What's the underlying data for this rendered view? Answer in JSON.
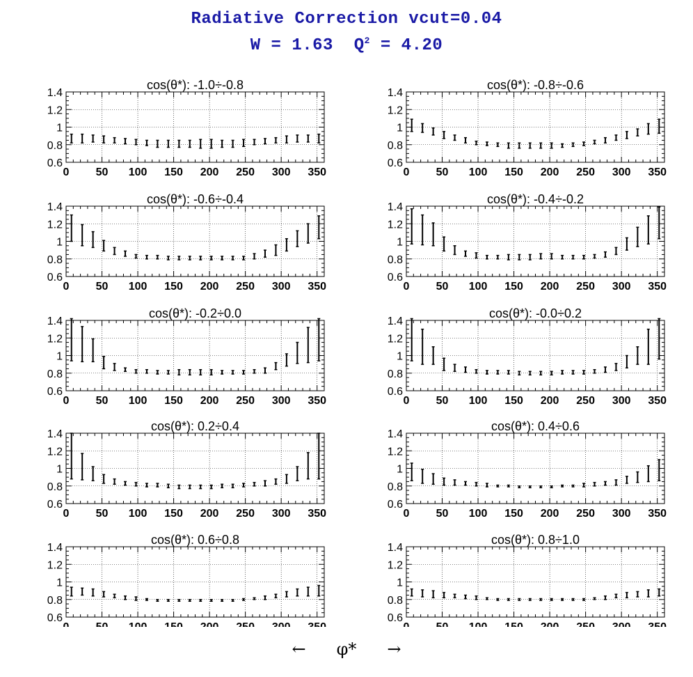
{
  "header": {
    "title_line1": "Radiative Correction  vcut=0.04",
    "w_label": "W = 1.63",
    "q_label": "Q",
    "q_exp": "2",
    "q_value": " = 4.20"
  },
  "footer": {
    "left_arrow": "←",
    "xlabel": "φ*",
    "right_arrow": "→"
  },
  "chart_data": {
    "type": "scatter",
    "xlim": [
      0,
      360
    ],
    "ylim": [
      0.6,
      1.4
    ],
    "xticks": [
      0,
      50,
      100,
      150,
      200,
      250,
      300,
      350
    ],
    "yticks": [
      0.6,
      0.8,
      1,
      1.2,
      1.4
    ],
    "grid": true,
    "x": [
      7.5,
      22.5,
      37.5,
      52.5,
      67.5,
      82.5,
      97.5,
      112.5,
      127.5,
      142.5,
      157.5,
      172.5,
      187.5,
      202.5,
      217.5,
      232.5,
      247.5,
      262.5,
      277.5,
      292.5,
      307.5,
      322.5,
      337.5,
      352.5
    ],
    "panels": [
      {
        "title": "cos(θ*): -1.0÷-0.8",
        "y": [
          0.87,
          0.87,
          0.87,
          0.86,
          0.85,
          0.84,
          0.83,
          0.82,
          0.81,
          0.81,
          0.81,
          0.81,
          0.81,
          0.81,
          0.81,
          0.81,
          0.82,
          0.83,
          0.84,
          0.85,
          0.86,
          0.87,
          0.87,
          0.87
        ],
        "err": [
          0.05,
          0.05,
          0.04,
          0.04,
          0.03,
          0.03,
          0.03,
          0.03,
          0.04,
          0.04,
          0.04,
          0.04,
          0.05,
          0.05,
          0.04,
          0.04,
          0.04,
          0.03,
          0.03,
          0.03,
          0.04,
          0.04,
          0.04,
          0.05
        ]
      },
      {
        "title": "cos(θ*): -0.8÷-0.6",
        "y": [
          1.02,
          0.99,
          0.95,
          0.91,
          0.88,
          0.85,
          0.82,
          0.81,
          0.8,
          0.79,
          0.79,
          0.79,
          0.79,
          0.79,
          0.79,
          0.8,
          0.81,
          0.83,
          0.85,
          0.88,
          0.91,
          0.94,
          0.98,
          1.01
        ],
        "err": [
          0.07,
          0.05,
          0.04,
          0.04,
          0.03,
          0.03,
          0.02,
          0.02,
          0.02,
          0.03,
          0.03,
          0.03,
          0.03,
          0.03,
          0.02,
          0.02,
          0.02,
          0.02,
          0.03,
          0.03,
          0.04,
          0.04,
          0.06,
          0.08
        ]
      },
      {
        "title": "cos(θ*): -0.6÷-0.4",
        "y": [
          1.15,
          1.07,
          1.02,
          0.95,
          0.89,
          0.86,
          0.83,
          0.82,
          0.82,
          0.81,
          0.81,
          0.81,
          0.81,
          0.81,
          0.81,
          0.81,
          0.81,
          0.83,
          0.86,
          0.9,
          0.96,
          1.03,
          1.09,
          1.16
        ],
        "err": [
          0.15,
          0.12,
          0.09,
          0.06,
          0.04,
          0.03,
          0.02,
          0.02,
          0.02,
          0.02,
          0.02,
          0.02,
          0.02,
          0.02,
          0.02,
          0.02,
          0.02,
          0.03,
          0.04,
          0.06,
          0.07,
          0.09,
          0.11,
          0.13
        ]
      },
      {
        "title": "cos(θ*): -0.4÷-0.2",
        "y": [
          1.17,
          1.13,
          1.08,
          0.97,
          0.9,
          0.86,
          0.84,
          0.82,
          0.82,
          0.82,
          0.82,
          0.82,
          0.83,
          0.83,
          0.82,
          0.82,
          0.82,
          0.83,
          0.85,
          0.89,
          0.97,
          1.05,
          1.13,
          1.21
        ],
        "err": [
          0.2,
          0.17,
          0.13,
          0.08,
          0.05,
          0.03,
          0.03,
          0.02,
          0.02,
          0.03,
          0.03,
          0.03,
          0.03,
          0.03,
          0.02,
          0.02,
          0.02,
          0.02,
          0.03,
          0.04,
          0.07,
          0.11,
          0.16,
          0.18
        ]
      },
      {
        "title": "cos(θ*): -0.2÷0.0",
        "y": [
          1.18,
          1.13,
          1.06,
          0.92,
          0.87,
          0.84,
          0.82,
          0.82,
          0.81,
          0.81,
          0.81,
          0.81,
          0.81,
          0.81,
          0.81,
          0.81,
          0.81,
          0.82,
          0.83,
          0.88,
          0.95,
          1.03,
          1.12,
          1.18
        ],
        "err": [
          0.24,
          0.2,
          0.13,
          0.07,
          0.04,
          0.02,
          0.02,
          0.02,
          0.02,
          0.02,
          0.03,
          0.03,
          0.03,
          0.03,
          0.02,
          0.02,
          0.02,
          0.02,
          0.03,
          0.04,
          0.07,
          0.12,
          0.2,
          0.24
        ]
      },
      {
        "title": "cos(θ*): -0.0÷0.2",
        "y": [
          1.18,
          1.1,
          1.0,
          0.9,
          0.86,
          0.84,
          0.82,
          0.81,
          0.81,
          0.81,
          0.8,
          0.8,
          0.8,
          0.8,
          0.81,
          0.81,
          0.81,
          0.82,
          0.84,
          0.87,
          0.93,
          1.0,
          1.1,
          1.19
        ],
        "err": [
          0.24,
          0.2,
          0.1,
          0.07,
          0.04,
          0.03,
          0.02,
          0.02,
          0.02,
          0.02,
          0.02,
          0.02,
          0.02,
          0.02,
          0.02,
          0.02,
          0.02,
          0.02,
          0.03,
          0.04,
          0.07,
          0.1,
          0.2,
          0.23
        ]
      },
      {
        "title": "cos(θ*): 0.2÷0.4",
        "y": [
          1.14,
          1.02,
          0.94,
          0.88,
          0.85,
          0.83,
          0.82,
          0.81,
          0.81,
          0.8,
          0.79,
          0.79,
          0.79,
          0.79,
          0.8,
          0.8,
          0.81,
          0.82,
          0.83,
          0.85,
          0.88,
          0.94,
          1.03,
          1.14
        ],
        "err": [
          0.26,
          0.15,
          0.08,
          0.05,
          0.03,
          0.02,
          0.02,
          0.02,
          0.02,
          0.02,
          0.02,
          0.02,
          0.02,
          0.02,
          0.02,
          0.02,
          0.02,
          0.02,
          0.03,
          0.03,
          0.05,
          0.08,
          0.15,
          0.26
        ]
      },
      {
        "title": "cos(θ*): 0.4÷0.6",
        "y": [
          0.96,
          0.91,
          0.88,
          0.85,
          0.84,
          0.83,
          0.82,
          0.81,
          0.8,
          0.8,
          0.79,
          0.79,
          0.79,
          0.79,
          0.8,
          0.8,
          0.81,
          0.82,
          0.83,
          0.84,
          0.87,
          0.9,
          0.94,
          0.98
        ],
        "err": [
          0.1,
          0.08,
          0.06,
          0.04,
          0.03,
          0.02,
          0.02,
          0.02,
          0.01,
          0.01,
          0.01,
          0.01,
          0.01,
          0.01,
          0.01,
          0.01,
          0.02,
          0.02,
          0.02,
          0.03,
          0.04,
          0.06,
          0.09,
          0.12
        ]
      },
      {
        "title": "cos(θ*): 0.6÷0.8",
        "y": [
          0.89,
          0.89,
          0.88,
          0.86,
          0.84,
          0.82,
          0.81,
          0.8,
          0.79,
          0.79,
          0.79,
          0.79,
          0.79,
          0.79,
          0.79,
          0.79,
          0.8,
          0.81,
          0.82,
          0.84,
          0.86,
          0.88,
          0.89,
          0.9
        ],
        "err": [
          0.05,
          0.04,
          0.04,
          0.03,
          0.02,
          0.02,
          0.02,
          0.01,
          0.01,
          0.01,
          0.01,
          0.01,
          0.01,
          0.01,
          0.01,
          0.01,
          0.01,
          0.01,
          0.02,
          0.02,
          0.03,
          0.04,
          0.05,
          0.06
        ]
      },
      {
        "title": "cos(θ*): 0.8÷1.0",
        "y": [
          0.88,
          0.87,
          0.86,
          0.85,
          0.84,
          0.83,
          0.82,
          0.81,
          0.8,
          0.8,
          0.8,
          0.8,
          0.8,
          0.8,
          0.8,
          0.8,
          0.8,
          0.81,
          0.82,
          0.84,
          0.85,
          0.86,
          0.87,
          0.88
        ],
        "err": [
          0.04,
          0.04,
          0.04,
          0.03,
          0.02,
          0.02,
          0.02,
          0.01,
          0.01,
          0.01,
          0.01,
          0.01,
          0.01,
          0.01,
          0.01,
          0.01,
          0.01,
          0.01,
          0.02,
          0.02,
          0.03,
          0.03,
          0.04,
          0.04
        ]
      }
    ]
  }
}
